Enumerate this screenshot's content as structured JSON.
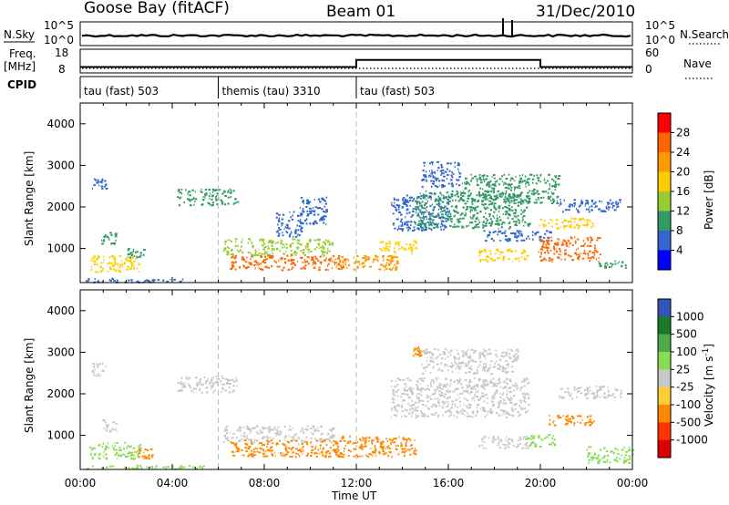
{
  "header": {
    "station": "Goose Bay (fitACF)",
    "beam": "Beam 01",
    "date": "31/Dec/2010"
  },
  "param_panels": {
    "nsky_label": "N.Sky",
    "nsearch_label": "N.Search",
    "noise_ticks_left": [
      "10^5",
      "10^0"
    ],
    "noise_ticks_right": [
      "10^5",
      "10^0"
    ],
    "freq_label": "Freq.",
    "freq_unit": "[MHz]",
    "freq_ticks": [
      "18",
      "8"
    ],
    "nave_label": "Nave",
    "nave_ticks": [
      "60",
      "0"
    ],
    "cpid_label": "CPID",
    "cpid_segments": [
      {
        "name": "tau (fast) 503",
        "start": 0,
        "end": 6
      },
      {
        "name": "themis (tau) 3310",
        "start": 6,
        "end": 12
      },
      {
        "name": "tau (fast) 503",
        "start": 12,
        "end": 24
      }
    ]
  },
  "power_panel": {
    "ylabel": "Slant Range [km]",
    "colorbar_label": "Power [dB]",
    "colorbar_ticks": [
      "28",
      "24",
      "20",
      "16",
      "12",
      "8",
      "4"
    ],
    "colorbar_colors": [
      "#ff0000",
      "#ff6600",
      "#ff9900",
      "#ffcc00",
      "#99cc33",
      "#339966",
      "#3366cc",
      "#0000ff"
    ],
    "yticks": [
      "4000",
      "3000",
      "2000",
      "1000"
    ]
  },
  "velocity_panel": {
    "ylabel": "Slant Range [km]",
    "colorbar_label": "Velocity [m s",
    "colorbar_label_exp": "-1",
    "colorbar_ticks": [
      "1000",
      "500",
      "100",
      "25",
      "-25",
      "-100",
      "-500",
      "-1000"
    ],
    "colorbar_colors": [
      "#3355bb",
      "#1a7a2a",
      "#4daa4d",
      "#88dd55",
      "#c8c8c8",
      "#ffcc33",
      "#ff8800",
      "#ff3300",
      "#dd0000"
    ],
    "yticks": [
      "4000",
      "3000",
      "2000",
      "1000"
    ]
  },
  "xaxis": {
    "ticks": [
      "00:00",
      "04:00",
      "08:00",
      "12:00",
      "16:00",
      "20:00",
      "00:00"
    ],
    "label": "Time UT"
  },
  "chart_data": {
    "type": "heatmap",
    "title": "Goose Bay (fitACF) Beam 01 31/Dec/2010",
    "xlabel": "Time UT",
    "ylabel": "Slant Range [km]",
    "x_range_hours": [
      0,
      24
    ],
    "y_range_km": [
      180,
      4500
    ],
    "frequency_mhz": [
      {
        "from": 0,
        "to": 12,
        "value": 10.5
      },
      {
        "from": 12,
        "to": 20,
        "value": 13.5
      },
      {
        "from": 20,
        "to": 24,
        "value": 10.5
      }
    ],
    "power_regions": [
      {
        "t0": 0.2,
        "t1": 4.5,
        "r0": 200,
        "r1": 300,
        "level": 8
      },
      {
        "t0": 0.4,
        "t1": 2.6,
        "r0": 450,
        "r1": 850,
        "level": 20
      },
      {
        "t0": 0.9,
        "t1": 1.6,
        "r0": 1100,
        "r1": 1400,
        "level": 10
      },
      {
        "t0": 0.5,
        "t1": 1.1,
        "r0": 2450,
        "r1": 2750,
        "level": 8
      },
      {
        "t0": 2.0,
        "t1": 2.8,
        "r0": 800,
        "r1": 1050,
        "level": 10
      },
      {
        "t0": 4.2,
        "t1": 6.8,
        "r0": 2050,
        "r1": 2450,
        "level": 10
      },
      {
        "t0": 6.2,
        "t1": 11.0,
        "r0": 850,
        "r1": 1250,
        "level": 14
      },
      {
        "t0": 6.5,
        "t1": 11.5,
        "r0": 500,
        "r1": 850,
        "level": 26
      },
      {
        "t0": 8.5,
        "t1": 9.6,
        "r0": 1300,
        "r1": 1900,
        "level": 6
      },
      {
        "t0": 9.5,
        "t1": 10.7,
        "r0": 1600,
        "r1": 2250,
        "level": 6
      },
      {
        "t0": 11.0,
        "t1": 13.8,
        "r0": 500,
        "r1": 850,
        "level": 22
      },
      {
        "t0": 13.0,
        "t1": 14.6,
        "r0": 900,
        "r1": 1200,
        "level": 20
      },
      {
        "t0": 13.5,
        "t1": 16.0,
        "r0": 1450,
        "r1": 2300,
        "level": 8
      },
      {
        "t0": 14.5,
        "t1": 19.5,
        "r0": 1500,
        "r1": 2400,
        "level": 12
      },
      {
        "t0": 14.8,
        "t1": 16.5,
        "r0": 2500,
        "r1": 3100,
        "level": 8
      },
      {
        "t0": 16.5,
        "t1": 20.8,
        "r0": 2100,
        "r1": 2800,
        "level": 10
      },
      {
        "t0": 17.3,
        "t1": 19.4,
        "r0": 700,
        "r1": 1000,
        "level": 20
      },
      {
        "t0": 17.5,
        "t1": 20.5,
        "r0": 1200,
        "r1": 1450,
        "level": 8
      },
      {
        "t0": 19.9,
        "t1": 22.3,
        "r0": 1500,
        "r1": 1750,
        "level": 18
      },
      {
        "t0": 19.9,
        "t1": 22.6,
        "r0": 700,
        "r1": 1300,
        "level": 28
      },
      {
        "t0": 22.5,
        "t1": 23.8,
        "r0": 550,
        "r1": 750,
        "level": 10
      },
      {
        "t0": 20.8,
        "t1": 23.5,
        "r0": 1900,
        "r1": 2200,
        "level": 6
      }
    ],
    "velocity_regions": [
      {
        "t0": 0.2,
        "t1": 5.5,
        "r0": 200,
        "r1": 300,
        "level": 100
      },
      {
        "t0": 0.4,
        "t1": 2.6,
        "r0": 450,
        "r1": 850,
        "level": 100
      },
      {
        "t0": 2.3,
        "t1": 3.1,
        "r0": 450,
        "r1": 700,
        "level": -100
      },
      {
        "t0": 0.9,
        "t1": 1.6,
        "r0": 1100,
        "r1": 1400,
        "level": 0
      },
      {
        "t0": 0.5,
        "t1": 1.1,
        "r0": 2450,
        "r1": 2750,
        "level": 0
      },
      {
        "t0": 4.2,
        "t1": 6.8,
        "r0": 2050,
        "r1": 2450,
        "level": 0
      },
      {
        "t0": 6.2,
        "t1": 11.0,
        "r0": 850,
        "r1": 1250,
        "level": 0
      },
      {
        "t0": 6.5,
        "t1": 11.5,
        "r0": 500,
        "r1": 900,
        "level": -100
      },
      {
        "t0": 11.0,
        "t1": 14.6,
        "r0": 500,
        "r1": 1000,
        "level": -100
      },
      {
        "t0": 14.4,
        "t1": 14.8,
        "r0": 2900,
        "r1": 3150,
        "level": -100
      },
      {
        "t0": 13.5,
        "t1": 19.5,
        "r0": 1450,
        "r1": 2400,
        "level": 0
      },
      {
        "t0": 14.8,
        "t1": 19.0,
        "r0": 2500,
        "r1": 3100,
        "level": 0
      },
      {
        "t0": 17.3,
        "t1": 19.4,
        "r0": 700,
        "r1": 1000,
        "level": 0
      },
      {
        "t0": 19.3,
        "t1": 20.6,
        "r0": 750,
        "r1": 1050,
        "level": 100
      },
      {
        "t0": 20.3,
        "t1": 22.3,
        "r0": 1250,
        "r1": 1500,
        "level": -100
      },
      {
        "t0": 20.8,
        "t1": 23.5,
        "r0": 1900,
        "r1": 2200,
        "level": 0
      },
      {
        "t0": 22.0,
        "t1": 24.0,
        "r0": 350,
        "r1": 750,
        "level": 100
      }
    ]
  }
}
